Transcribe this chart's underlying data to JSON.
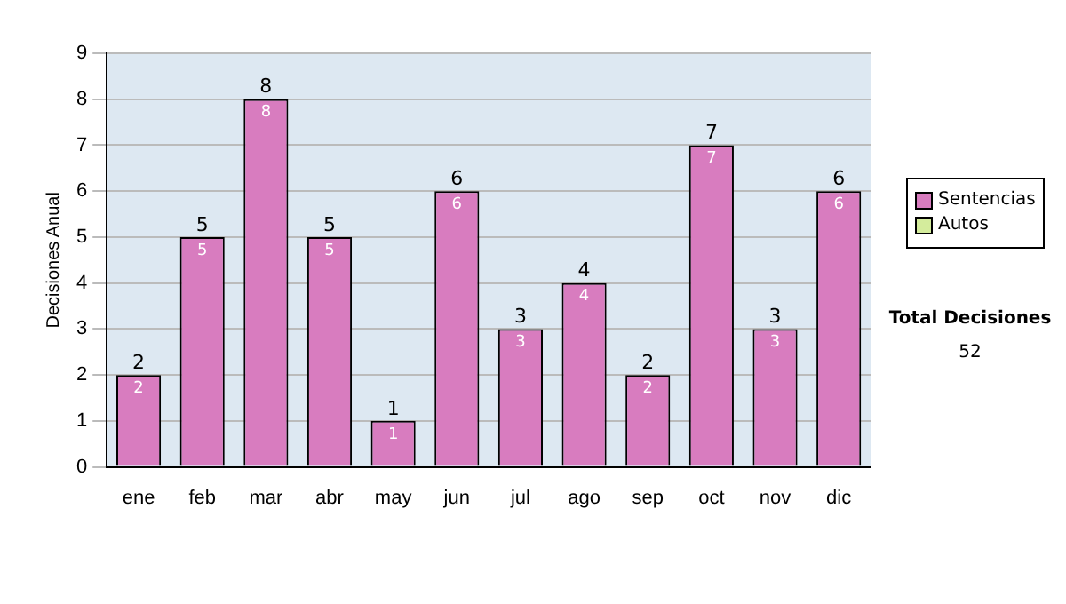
{
  "chart_data": {
    "type": "bar",
    "ylabel": "Decisiones Anual",
    "categories": [
      "ene",
      "feb",
      "mar",
      "abr",
      "may",
      "jun",
      "jul",
      "ago",
      "sep",
      "oct",
      "nov",
      "dic"
    ],
    "series": [
      {
        "name": "Sentencias",
        "color": "#d87cbf",
        "values": [
          2,
          5,
          8,
          5,
          1,
          6,
          3,
          4,
          2,
          7,
          3,
          6
        ],
        "value_labels": [
          "2",
          "5",
          "8",
          "5",
          "1",
          "6",
          "3",
          "4",
          "2",
          "7",
          "3",
          "6"
        ]
      },
      {
        "name": "Autos",
        "color": "#d4ec9c",
        "values": [
          0,
          0,
          0,
          0,
          0,
          0,
          0,
          0,
          0,
          0,
          0,
          0
        ]
      }
    ],
    "stacked": true,
    "totals": [
      "2",
      "5",
      "8",
      "5",
      "1",
      "6",
      "3",
      "4",
      "2",
      "7",
      "3",
      "6"
    ],
    "ylim": [
      0,
      9
    ],
    "yticks": [
      0,
      1,
      2,
      3,
      4,
      5,
      6,
      7,
      8,
      9
    ],
    "grid": "y",
    "legend": "right",
    "annotations": [
      "Total Decisiones",
      "52"
    ]
  }
}
